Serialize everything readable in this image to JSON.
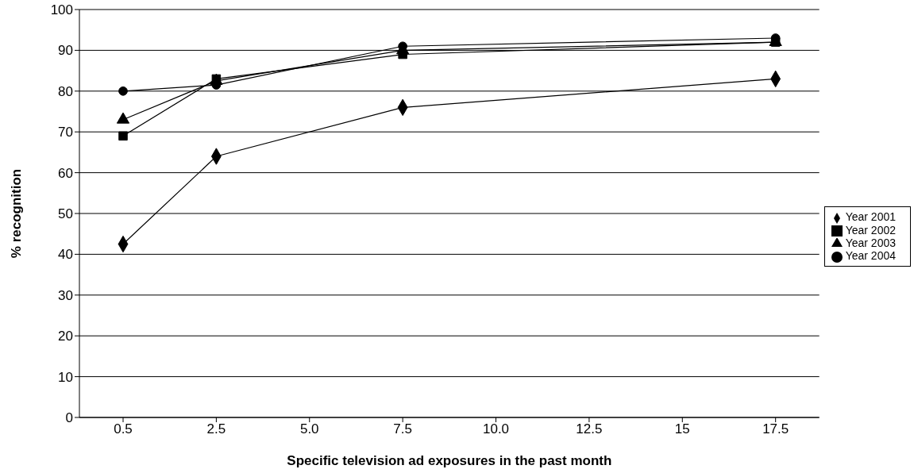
{
  "chart_data": {
    "type": "line",
    "xlabel": "Specific television ad exposures in the past month",
    "ylabel": "% recognition",
    "categories": [
      "0.5",
      "2.5",
      "5.0",
      "7.5",
      "10.0",
      "12.5",
      "15",
      "17.5"
    ],
    "series": [
      {
        "name": "Year 2001",
        "color": "#000000",
        "marker": "diamond",
        "values": [
          42.5,
          64,
          null,
          76,
          null,
          null,
          null,
          83
        ]
      },
      {
        "name": "Year 2002",
        "color": "#000000",
        "marker": "square",
        "values": [
          69,
          83,
          null,
          89,
          null,
          null,
          null,
          92
        ]
      },
      {
        "name": "Year 2003",
        "color": "#000000",
        "marker": "triangle",
        "values": [
          73,
          82.5,
          null,
          90,
          null,
          null,
          null,
          92
        ]
      },
      {
        "name": "Year 2004",
        "color": "#000000",
        "marker": "circle",
        "values": [
          80,
          81.5,
          null,
          91,
          null,
          null,
          null,
          93
        ]
      }
    ],
    "ylim": [
      0,
      100
    ],
    "yticks": [
      0,
      10,
      20,
      30,
      40,
      50,
      60,
      70,
      80,
      90,
      100
    ],
    "grid": "y",
    "legend": "right"
  }
}
